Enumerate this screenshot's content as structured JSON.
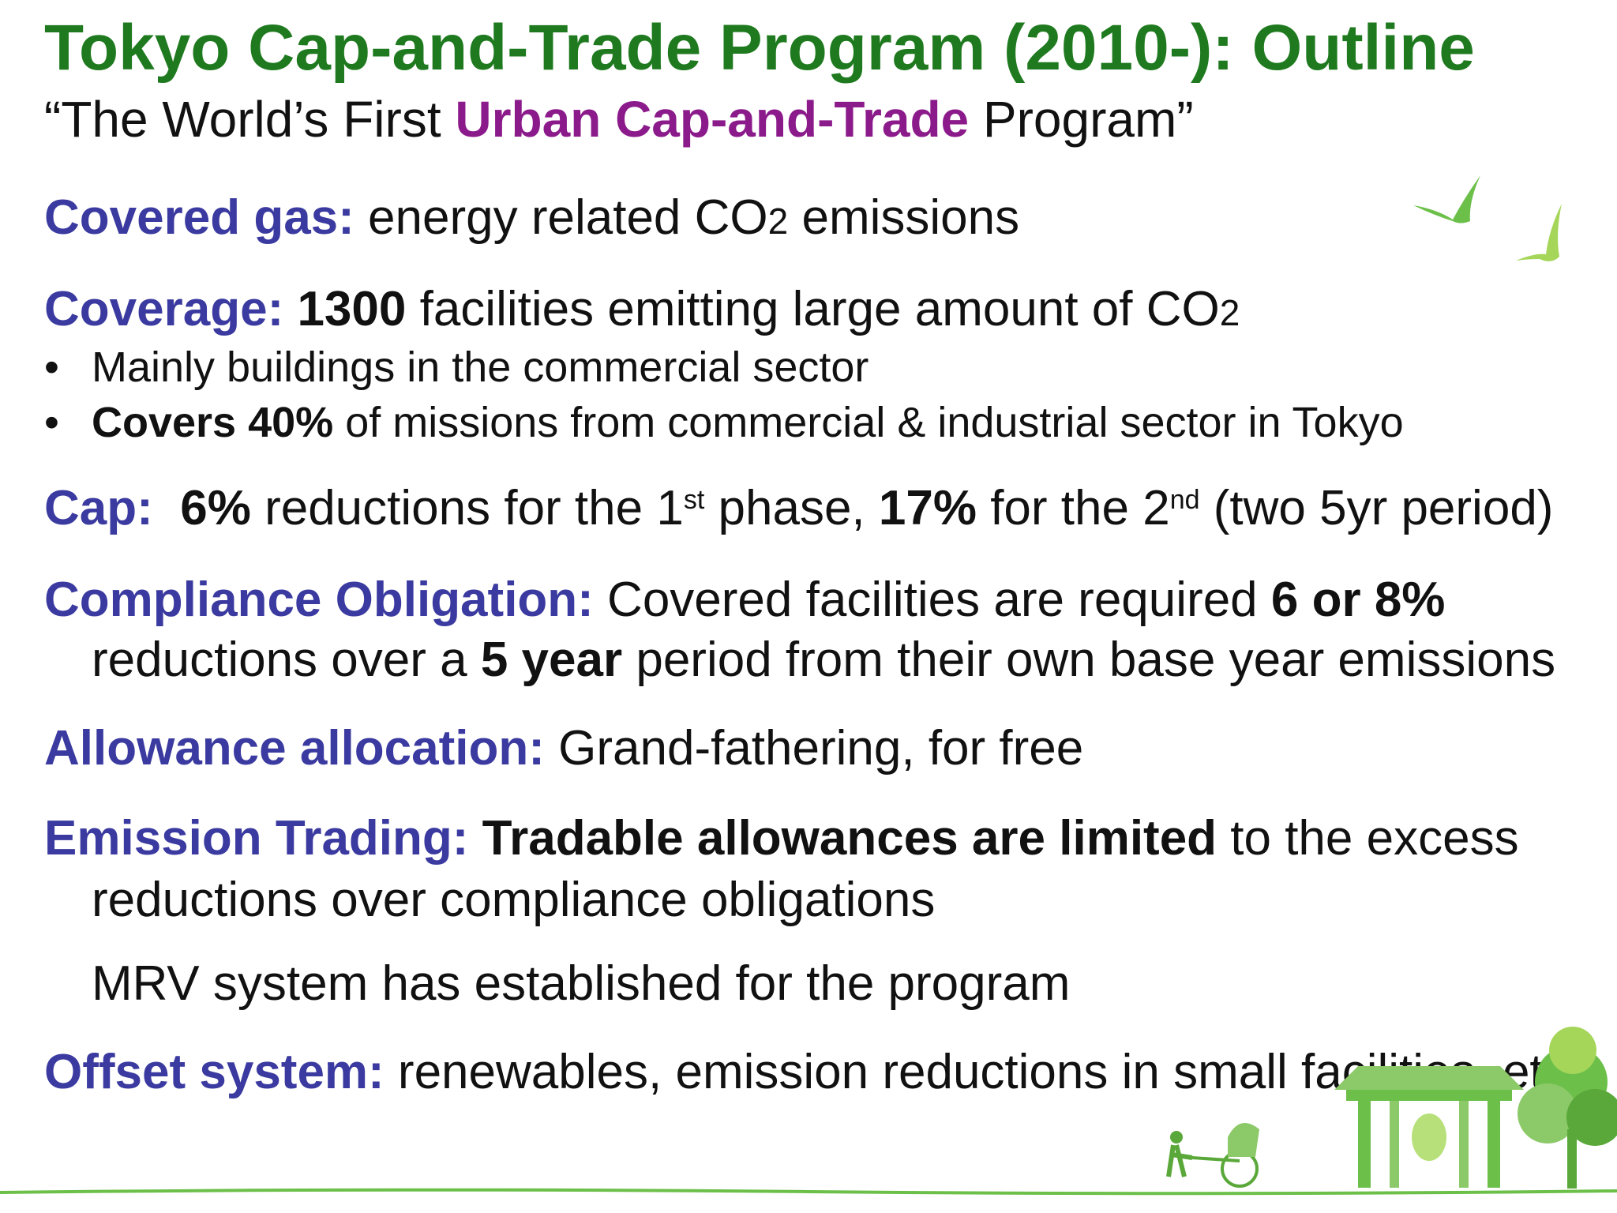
{
  "title": "Tokyo Cap-and-Trade Program (2010-): Outline",
  "subtitle": {
    "open": "“The World’s First ",
    "accent": "Urban Cap-and-Trade",
    "close": " Program”"
  },
  "covered_gas": {
    "label": "Covered gas:",
    "text": " energy related CO",
    "subscript": "2",
    "text2": " emissions"
  },
  "coverage": {
    "label": "Coverage:",
    "count": " 1300",
    "text": " facilities emitting large amount of CO",
    "subscript": "2",
    "bullets": [
      {
        "bold": "",
        "text": "Mainly buildings in the commercial sector"
      },
      {
        "bold": "Covers 40%",
        "text": " of missions from commercial & industrial sector in Tokyo"
      }
    ]
  },
  "cap": {
    "label": "Cap:",
    "pct1": "6%",
    "text1": " reductions for the 1",
    "sup1": "st",
    "text2": " phase, ",
    "pct2": "17%",
    "text3": " for the 2",
    "sup2": "nd",
    "text4": "  (two 5yr period)"
  },
  "compliance": {
    "label": "Compliance Obligation:",
    "text1": " Covered facilities are required ",
    "bold1": "6 or 8%",
    "text2": "reductions over a ",
    "bold2": "5 year",
    "text3": " period from their own base year emissions"
  },
  "allocation": {
    "label": "Allowance allocation:",
    "text": " Grand-fathering, for free"
  },
  "trading": {
    "label": "Emission Trading:",
    "bold": " Tradable allowances are limited",
    "text1": " to the excess",
    "text2": "reductions over compliance obligations",
    "mrv": "MRV system has established for the program"
  },
  "offset": {
    "label": "Offset system:",
    "text": " renewables, emission reductions in small facilities, etc"
  },
  "colors": {
    "title": "#1f7a1f",
    "label": "#3a3aa0",
    "accent": "#8b1a8b",
    "decor_green": "#6cc04a"
  }
}
